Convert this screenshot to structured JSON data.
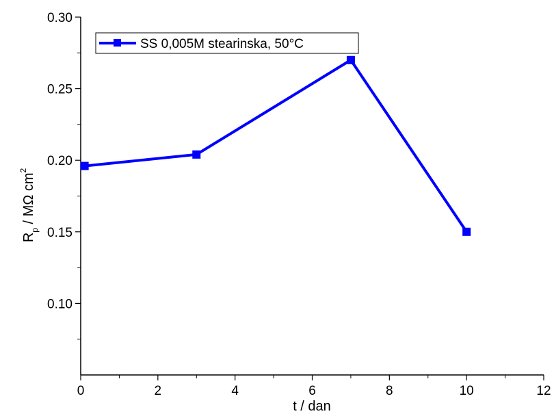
{
  "chart_data": {
    "type": "line",
    "xlabel": "t / dan",
    "ylabel_main": "R",
    "ylabel_sub": "p",
    "ylabel_rest": " / MΩ cm",
    "ylabel_sup": "2",
    "xlim": [
      0,
      12
    ],
    "ylim": [
      0.05,
      0.3
    ],
    "xticks": [
      0,
      2,
      4,
      6,
      8,
      10,
      12
    ],
    "xtick_labels": [
      "0",
      "2",
      "4",
      "6",
      "8",
      "10",
      "12"
    ],
    "yticks": [
      0.1,
      0.15,
      0.2,
      0.25,
      0.3
    ],
    "ytick_labels": [
      "0.10",
      "0.15",
      "0.20",
      "0.25",
      "0.30"
    ],
    "grid": false,
    "legend_position": "top-left",
    "series": [
      {
        "name": "SS 0,005M stearinska, 50°C",
        "color": "#0000ff",
        "marker": "square",
        "x": [
          0.1,
          3,
          7,
          10
        ],
        "y": [
          0.196,
          0.204,
          0.27,
          0.15
        ]
      }
    ]
  }
}
